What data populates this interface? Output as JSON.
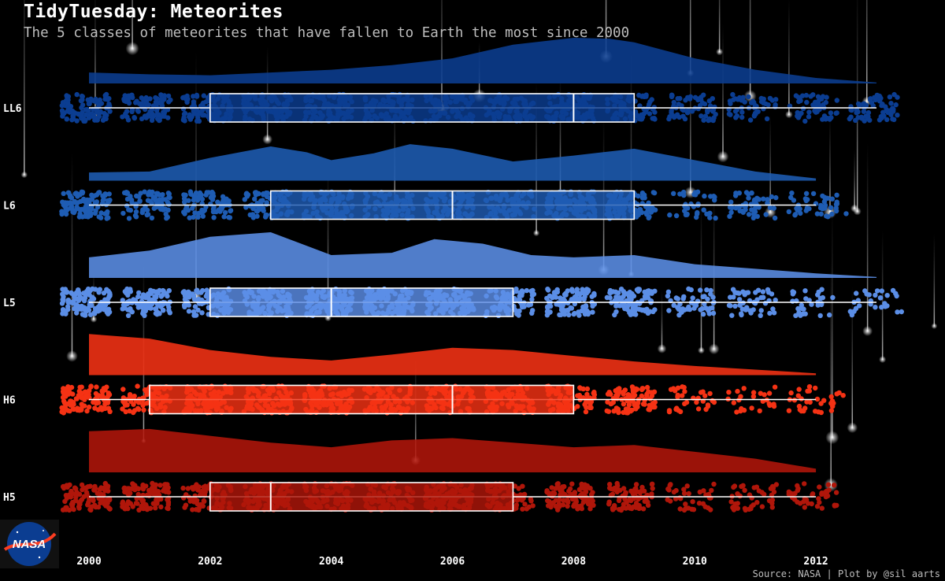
{
  "header": {
    "title": "TidyTuesday: Meteorites",
    "subtitle": "The 5 classes of meteorites that have fallen to Earth the most since 2000"
  },
  "caption": "Source: NASA | Plot by @sil aarts",
  "logo": {
    "text": "NASA"
  },
  "colors": {
    "background": "#000000",
    "LL6": "#0b3d91",
    "L6": "#1e5cb3",
    "L5": "#5b8ee6",
    "H6": "#f53214",
    "H5": "#b0160a"
  },
  "chart_data": {
    "type": "raincloud",
    "title": "TidyTuesday: Meteorites",
    "subtitle": "The 5 classes of meteorites that have fallen to Earth the most since 2000",
    "xlabel": "",
    "ylabel": "",
    "xlim": [
      2000,
      2013
    ],
    "x_ticks": [
      2000,
      2002,
      2004,
      2006,
      2008,
      2010,
      2012
    ],
    "categories": [
      "LL6",
      "L6",
      "L5",
      "H6",
      "H5"
    ],
    "series": [
      {
        "name": "LL6",
        "color": "#0b3d91",
        "box": {
          "min": 2000,
          "q1": 2002,
          "median": 2008,
          "q3": 2009,
          "max": 2013
        },
        "density": [
          [
            2000,
            0.24
          ],
          [
            2001,
            0.2
          ],
          [
            2002,
            0.18
          ],
          [
            2003,
            0.24
          ],
          [
            2004,
            0.3
          ],
          [
            2005,
            0.4
          ],
          [
            2006,
            0.55
          ],
          [
            2007,
            0.85
          ],
          [
            2008,
            1.0
          ],
          [
            2008.6,
            0.98
          ],
          [
            2009,
            0.9
          ],
          [
            2010,
            0.55
          ],
          [
            2011,
            0.3
          ],
          [
            2012,
            0.12
          ],
          [
            2013,
            0.02
          ]
        ]
      },
      {
        "name": "L6",
        "color": "#1e5cb3",
        "box": {
          "min": 2000,
          "q1": 2003,
          "median": 2006,
          "q3": 2009,
          "max": 2012
        },
        "density": [
          [
            2000,
            0.18
          ],
          [
            2001,
            0.2
          ],
          [
            2002,
            0.5
          ],
          [
            2003,
            0.75
          ],
          [
            2003.6,
            0.62
          ],
          [
            2004,
            0.45
          ],
          [
            2004.7,
            0.6
          ],
          [
            2005.3,
            0.8
          ],
          [
            2006,
            0.7
          ],
          [
            2007,
            0.42
          ],
          [
            2008,
            0.55
          ],
          [
            2009,
            0.7
          ],
          [
            2010,
            0.45
          ],
          [
            2011,
            0.2
          ],
          [
            2012,
            0.05
          ]
        ]
      },
      {
        "name": "L5",
        "color": "#5b8ee6",
        "box": {
          "min": 2000,
          "q1": 2002,
          "median": 2004,
          "q3": 2007,
          "max": 2013
        },
        "density": [
          [
            2000,
            0.45
          ],
          [
            2001,
            0.6
          ],
          [
            2002,
            0.9
          ],
          [
            2003,
            1.0
          ],
          [
            2004,
            0.5
          ],
          [
            2005,
            0.55
          ],
          [
            2005.7,
            0.85
          ],
          [
            2006.5,
            0.75
          ],
          [
            2007.3,
            0.5
          ],
          [
            2008,
            0.45
          ],
          [
            2009,
            0.5
          ],
          [
            2010,
            0.3
          ],
          [
            2011,
            0.2
          ],
          [
            2012,
            0.1
          ],
          [
            2013,
            0.02
          ]
        ]
      },
      {
        "name": "H6",
        "color": "#f53214",
        "box": {
          "min": 2000,
          "q1": 2001,
          "median": 2006,
          "q3": 2008,
          "max": 2012
        },
        "density": [
          [
            2000,
            0.9
          ],
          [
            2001,
            0.8
          ],
          [
            2002,
            0.55
          ],
          [
            2003,
            0.4
          ],
          [
            2004,
            0.32
          ],
          [
            2005,
            0.45
          ],
          [
            2006,
            0.6
          ],
          [
            2007,
            0.55
          ],
          [
            2008,
            0.42
          ],
          [
            2009,
            0.3
          ],
          [
            2010,
            0.2
          ],
          [
            2011,
            0.12
          ],
          [
            2012,
            0.04
          ]
        ]
      },
      {
        "name": "H5",
        "color": "#b0160a",
        "box": {
          "min": 2000,
          "q1": 2002,
          "median": 2003,
          "q3": 2007,
          "max": 2012
        },
        "density": [
          [
            2000,
            0.9
          ],
          [
            2001,
            0.95
          ],
          [
            2002,
            0.8
          ],
          [
            2003,
            0.65
          ],
          [
            2004,
            0.55
          ],
          [
            2005,
            0.7
          ],
          [
            2006,
            0.75
          ],
          [
            2007,
            0.65
          ],
          [
            2008,
            0.55
          ],
          [
            2009,
            0.6
          ],
          [
            2010,
            0.45
          ],
          [
            2011,
            0.3
          ],
          [
            2012,
            0.08
          ]
        ]
      }
    ]
  }
}
